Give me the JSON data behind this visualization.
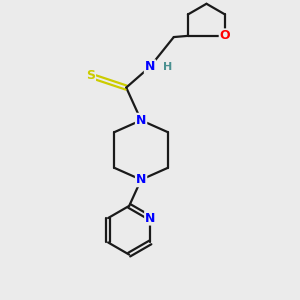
{
  "background_color": "#ebebeb",
  "bond_color": "#1a1a1a",
  "N_color": "#0000ff",
  "O_color": "#ff0000",
  "S_color": "#cccc00",
  "H_color": "#4a9090",
  "line_width": 1.6,
  "figsize": [
    3.0,
    3.0
  ],
  "dpi": 100,
  "xlim": [
    0,
    10
  ],
  "ylim": [
    0,
    10
  ]
}
